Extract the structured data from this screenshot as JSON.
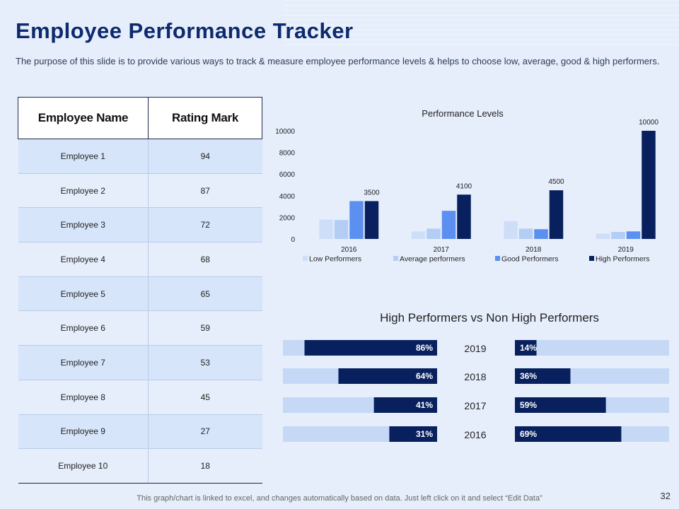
{
  "slide": {
    "title": "Employee Performance Tracker",
    "subtitle": "The purpose of this slide is to provide various ways to track & measure employee performance levels & helps to choose low, average, good & high performers.",
    "footer": "This graph/chart is linked to excel, and changes automatically based on data. Just left click on it and select “Edit Data”",
    "page_number": "32"
  },
  "table": {
    "headers": [
      "Employee Name",
      "Rating Mark"
    ],
    "rows": [
      [
        "Employee 1",
        "94"
      ],
      [
        "Employee 2",
        "87"
      ],
      [
        "Employee 3",
        "72"
      ],
      [
        "Employee 4",
        "68"
      ],
      [
        "Employee 5",
        "65"
      ],
      [
        "Employee 6",
        "59"
      ],
      [
        "Employee 7",
        "53"
      ],
      [
        "Employee 8",
        "45"
      ],
      [
        "Employee 9",
        "27"
      ],
      [
        "Employee 10",
        "18"
      ]
    ]
  },
  "chart_data": [
    {
      "type": "bar",
      "title": "Performance Levels",
      "categories": [
        "2016",
        "2017",
        "2018",
        "2019"
      ],
      "ylim": [
        0,
        10000
      ],
      "yticks": [
        "0",
        "2000",
        "4000",
        "6000",
        "8000",
        "10000"
      ],
      "series": [
        {
          "name": "Low Performers",
          "values": [
            1800,
            700,
            1650,
            500
          ],
          "color": "#cfdef8"
        },
        {
          "name": "Average performers",
          "values": [
            1750,
            950,
            950,
            650
          ],
          "color": "#b3cdf5"
        },
        {
          "name": "Good Performers",
          "values": [
            3500,
            2600,
            900,
            700
          ],
          "color": "#5b8ff0"
        },
        {
          "name": "High Performers",
          "values": [
            3500,
            4100,
            4500,
            10000
          ],
          "color": "#08205e"
        }
      ],
      "data_labels": [
        "3500",
        "4100",
        "4500",
        "10000"
      ],
      "legend_position": "bottom"
    },
    {
      "type": "bar",
      "title": "High Performers vs Non High Performers",
      "categories": [
        "2019",
        "2018",
        "2017",
        "2016"
      ],
      "left_series": {
        "name": "High Performers",
        "values": [
          86,
          64,
          41,
          31
        ],
        "labels": [
          "86%",
          "64%",
          "41%",
          "31%"
        ]
      },
      "right_series": {
        "name": "Non High Performers",
        "values": [
          14,
          36,
          59,
          69
        ],
        "labels": [
          "14%",
          "36%",
          "59%",
          "69%"
        ]
      },
      "bar_color": "#08205e",
      "track_color": "#c5d8f6"
    }
  ]
}
